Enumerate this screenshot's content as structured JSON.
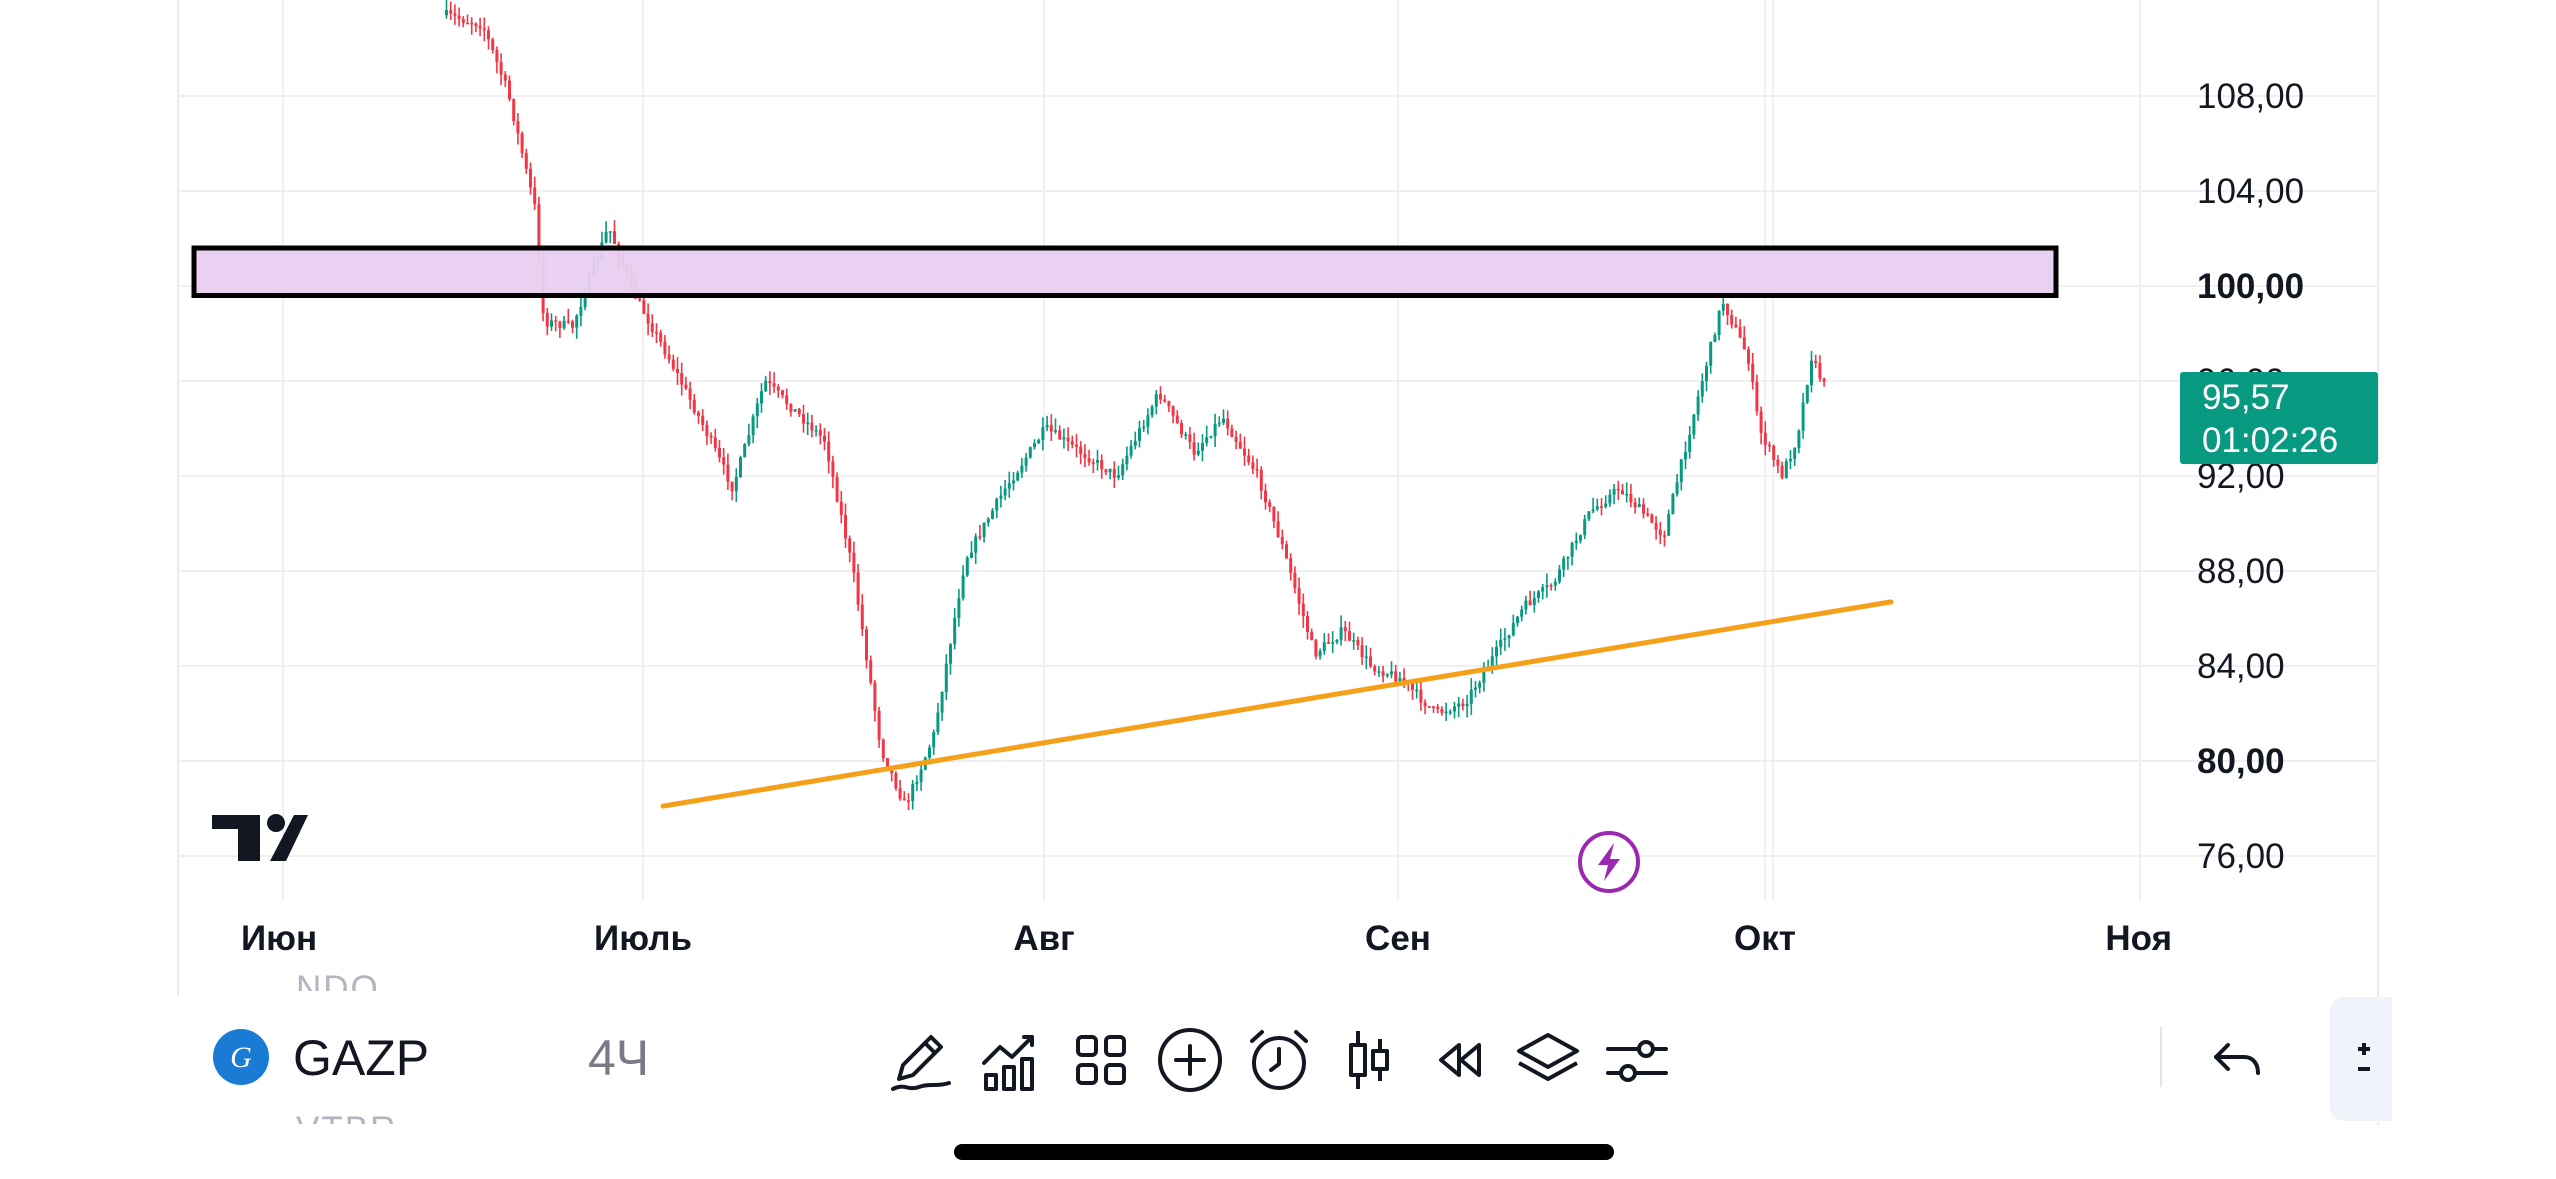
{
  "chart": {
    "symbol": "GAZP",
    "interval": "4Ч",
    "ghost_symbol_top": "NDQ",
    "ghost_symbol_bottom": "VTBR",
    "logo_glyph": "G",
    "last_price": "95,57",
    "countdown": "01:02:26",
    "price_axis": [
      "108,00",
      "104,00",
      "100,00",
      "96,00",
      "92,00",
      "88,00",
      "84,00",
      "80,00",
      "76,00"
    ],
    "time_axis": [
      "Июн",
      "Июль",
      "Авг",
      "Сен",
      "Окт",
      "Ноя"
    ],
    "colors": {
      "up": "#089981",
      "down": "#f23645",
      "zone_fill": "#e9cff0",
      "zone_border": "#000000",
      "trendline": "#f5a01a",
      "badge": "#089981",
      "lightning": "#9c27b0"
    },
    "icons": [
      "tradingview-logo-icon",
      "lightning-icon"
    ]
  },
  "chart_data": {
    "type": "candlestick",
    "y_range": [
      74.5,
      111.5
    ],
    "x_axis_labels": [
      "Июн",
      "Июль",
      "Авг",
      "Сен",
      "Окт",
      "Ноя"
    ],
    "resistance_zone": {
      "from": 99.6,
      "to": 101.6
    },
    "trendline": {
      "from": [
        1,
        78.1
      ],
      "to": [
        4,
        86.7
      ]
    },
    "last_price": 95.57,
    "path": [
      [
        0.45,
        111.4
      ],
      [
        0.55,
        111.0
      ],
      [
        0.62,
        108.2
      ],
      [
        0.7,
        103.0
      ],
      [
        0.72,
        98.5
      ],
      [
        0.8,
        98.3
      ],
      [
        0.9,
        102.5
      ],
      [
        0.97,
        99.7
      ],
      [
        1.06,
        97.0
      ],
      [
        1.15,
        94.0
      ],
      [
        1.22,
        91.5
      ],
      [
        1.3,
        96.0
      ],
      [
        1.45,
        93.5
      ],
      [
        1.52,
        88.0
      ],
      [
        1.59,
        80.5
      ],
      [
        1.65,
        78.1
      ],
      [
        1.72,
        81.0
      ],
      [
        1.8,
        88.5
      ],
      [
        1.9,
        91.5
      ],
      [
        2.0,
        94.0
      ],
      [
        2.1,
        93.0
      ],
      [
        2.2,
        92.0
      ],
      [
        2.32,
        95.5
      ],
      [
        2.42,
        93.0
      ],
      [
        2.5,
        94.5
      ],
      [
        2.6,
        92.0
      ],
      [
        2.67,
        89.0
      ],
      [
        2.76,
        84.5
      ],
      [
        2.84,
        85.5
      ],
      [
        2.92,
        84.0
      ],
      [
        3.0,
        83.5
      ],
      [
        3.1,
        82.0
      ],
      [
        3.18,
        82.5
      ],
      [
        3.26,
        84.5
      ],
      [
        3.34,
        86.5
      ],
      [
        3.42,
        87.5
      ],
      [
        3.52,
        90.5
      ],
      [
        3.6,
        91.5
      ],
      [
        3.72,
        89.5
      ],
      [
        3.8,
        94.5
      ],
      [
        3.88,
        99.4
      ],
      [
        3.95,
        97.0
      ],
      [
        3.98,
        94.0
      ],
      [
        4.04,
        92.0
      ],
      [
        4.08,
        93.5
      ],
      [
        4.12,
        97.0
      ],
      [
        4.16,
        95.57
      ]
    ]
  }
}
